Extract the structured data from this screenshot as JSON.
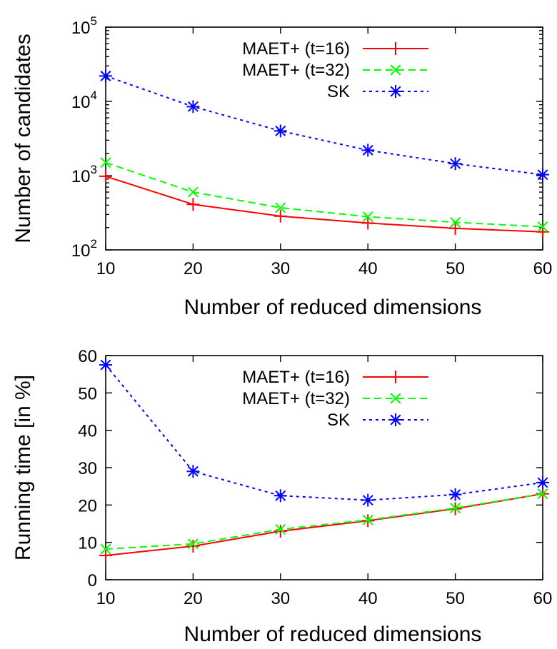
{
  "chart_data": [
    {
      "type": "line",
      "xlabel": "Number of reduced dimensions",
      "ylabel": "Number of candidates",
      "yscale": "log",
      "xlim": [
        10,
        60
      ],
      "ylim": [
        100,
        100000
      ],
      "x": [
        10,
        20,
        30,
        40,
        50,
        60
      ],
      "xticks": [
        "10",
        "20",
        "30",
        "40",
        "50",
        "60"
      ],
      "yticks": [
        {
          "value": 100,
          "base": "10",
          "exp": "2"
        },
        {
          "value": 1000,
          "base": "10",
          "exp": "3"
        },
        {
          "value": 10000,
          "base": "10",
          "exp": "4"
        },
        {
          "value": 100000,
          "base": "10",
          "exp": "5"
        }
      ],
      "legend": "top-right",
      "grid": false,
      "series": [
        {
          "name": "MAET+ (t=16)",
          "color": "#ff0000",
          "dash": "",
          "marker": "plus",
          "values": [
            980,
            410,
            285,
            230,
            195,
            175
          ]
        },
        {
          "name": "MAET+ (t=32)",
          "color": "#00ff00",
          "dash": "10,6",
          "marker": "x",
          "values": [
            1500,
            600,
            370,
            280,
            235,
            205
          ]
        },
        {
          "name": "SK",
          "color": "#0000ff",
          "dash": "4,5",
          "marker": "star",
          "values": [
            22000,
            8500,
            4000,
            2200,
            1450,
            1030
          ]
        }
      ]
    },
    {
      "type": "line",
      "xlabel": "Number of reduced dimensions",
      "ylabel": "Running time [in %]",
      "yscale": "linear",
      "xlim": [
        10,
        60
      ],
      "ylim": [
        0,
        60
      ],
      "x": [
        10,
        20,
        30,
        40,
        50,
        60
      ],
      "xticks": [
        "10",
        "20",
        "30",
        "40",
        "50",
        "60"
      ],
      "yticks": [
        {
          "value": 0,
          "label": "0"
        },
        {
          "value": 10,
          "label": "10"
        },
        {
          "value": 20,
          "label": "20"
        },
        {
          "value": 30,
          "label": "30"
        },
        {
          "value": 40,
          "label": "40"
        },
        {
          "value": 50,
          "label": "50"
        },
        {
          "value": 60,
          "label": "60"
        }
      ],
      "legend": "top-right",
      "grid": false,
      "series": [
        {
          "name": "MAET+ (t=16)",
          "color": "#ff0000",
          "dash": "",
          "marker": "plus",
          "values": [
            6.5,
            9,
            13,
            15.8,
            19,
            23
          ]
        },
        {
          "name": "MAET+ (t=32)",
          "color": "#00ff00",
          "dash": "10,6",
          "marker": "x",
          "values": [
            8.2,
            9.6,
            13.5,
            16,
            19.2,
            23
          ]
        },
        {
          "name": "SK",
          "color": "#0000ff",
          "dash": "4,5",
          "marker": "star",
          "values": [
            57.5,
            29,
            22.5,
            21.3,
            22.8,
            26
          ]
        }
      ]
    }
  ]
}
